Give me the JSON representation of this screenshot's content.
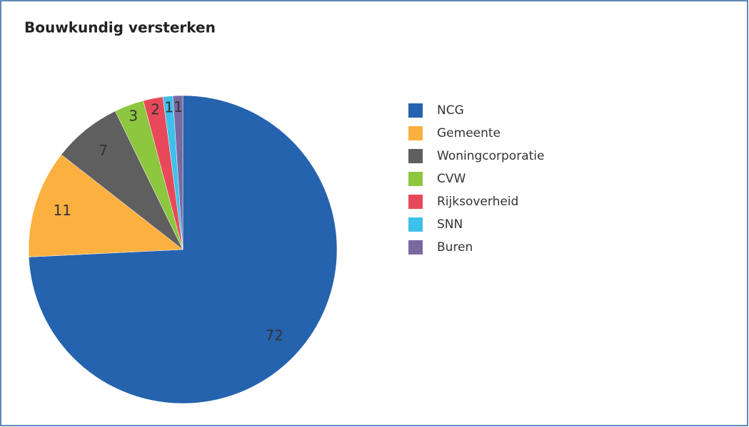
{
  "chart_data": {
    "type": "pie",
    "title": "Bouwkundig versterken",
    "categories": [
      "NCG",
      "Gemeente",
      "Woningcorporatie",
      "CVW",
      "Rijksoverheid",
      "SNN",
      "Buren"
    ],
    "values": [
      72,
      11,
      7,
      3,
      2,
      1,
      1
    ],
    "colors": [
      "#2563ae",
      "#fbb040",
      "#5f5f5f",
      "#8dc63f",
      "#e8495a",
      "#3dc1ea",
      "#7a68a0"
    ],
    "legend": "right"
  }
}
